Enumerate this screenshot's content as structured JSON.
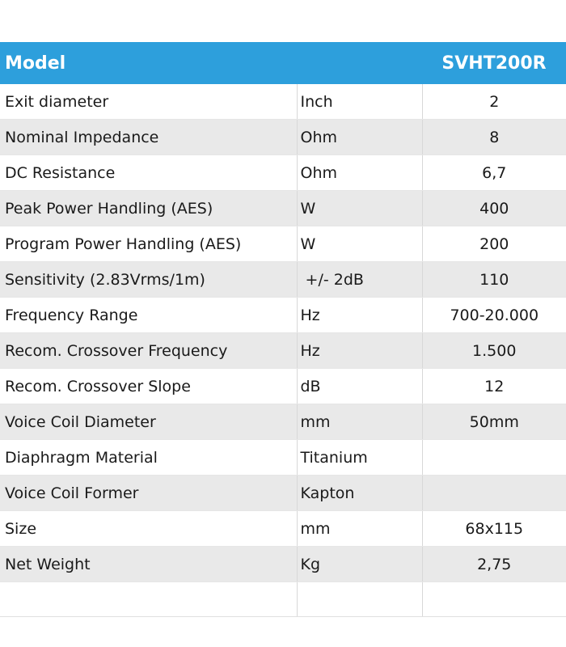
{
  "header": {
    "label": "Model",
    "value": "SVHT200R"
  },
  "rows": [
    {
      "name": "Exit diameter",
      "unit": "Inch",
      "value": "2"
    },
    {
      "name": "Nominal Impedance",
      "unit": "Ohm",
      "value": "8"
    },
    {
      "name": "DC Resistance",
      "unit": "Ohm",
      "value": "6,7"
    },
    {
      "name": "Peak Power Handling (AES)",
      "unit": "W",
      "value": "400"
    },
    {
      "name": "Program Power Handling (AES)",
      "unit": "W",
      "value": "200"
    },
    {
      "name": "Sensitivity (2.83Vrms/1m)",
      "unit": " +/- 2dB",
      "value": "110"
    },
    {
      "name": "Frequency Range",
      "unit": "Hz",
      "value": "700-20.000"
    },
    {
      "name": "Recom. Crossover Frequency",
      "unit": "Hz",
      "value": "1.500"
    },
    {
      "name": "Recom. Crossover Slope",
      "unit": "dB",
      "value": "12"
    },
    {
      "name": "Voice Coil Diameter",
      "unit": "mm",
      "value": "50mm"
    },
    {
      "name": "Diaphragm Material",
      "unit": "Titanium",
      "value": ""
    },
    {
      "name": "Voice Coil Former",
      "unit": "Kapton",
      "value": ""
    },
    {
      "name": "Size",
      "unit": "mm",
      "value": "68x115"
    },
    {
      "name": "Net Weight",
      "unit": "Kg",
      "value": "2,75"
    }
  ],
  "colors": {
    "header_bg": "#2d9fdc",
    "header_text": "#ffffff",
    "stripe": "#e9e9e9"
  }
}
